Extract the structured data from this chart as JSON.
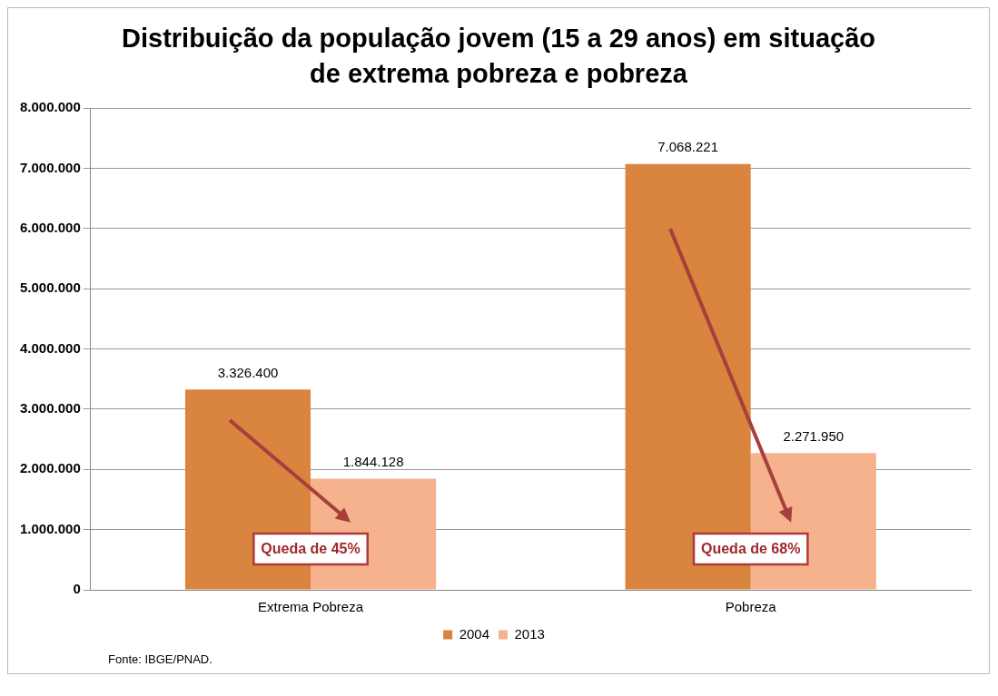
{
  "chart_data": {
    "type": "bar",
    "title": "Distribuição da população jovem (15 a 29 anos) em situação de extrema pobreza e pobreza",
    "categories": [
      "Extrema Pobreza",
      "Pobreza"
    ],
    "series": [
      {
        "name": "2004",
        "color": "#d9843f",
        "values": [
          3326400,
          7068221
        ],
        "value_labels": [
          "3.326.400",
          "7.068.221"
        ]
      },
      {
        "name": "2013",
        "color": "#f6b28c",
        "values": [
          1844128,
          2271950
        ],
        "value_labels": [
          "1.844.128",
          "2.271.950"
        ]
      }
    ],
    "ylim": [
      0,
      8000000
    ],
    "yticks": [
      {
        "value": 0,
        "label": "0"
      },
      {
        "value": 1000000,
        "label": "1.000.000"
      },
      {
        "value": 2000000,
        "label": "2.000.000"
      },
      {
        "value": 3000000,
        "label": "3.000.000"
      },
      {
        "value": 4000000,
        "label": "4.000.000"
      },
      {
        "value": 5000000,
        "label": "5.000.000"
      },
      {
        "value": 6000000,
        "label": "6.000.000"
      },
      {
        "value": 7000000,
        "label": "7.000.000"
      },
      {
        "value": 8000000,
        "label": "8.000.000"
      }
    ],
    "grid": "y",
    "legend": "bottom",
    "annotations": [
      "Queda de 45%",
      "Queda de 68%",
      "Fonte: IBGE/PNAD."
    ]
  }
}
